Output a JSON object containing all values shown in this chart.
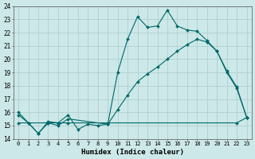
{
  "xlabel": "Humidex (Indice chaleur)",
  "bg_color": "#cce8e8",
  "grid_color": "#b0d0d0",
  "line_color": "#006868",
  "xlim": [
    -0.5,
    23.5
  ],
  "ylim": [
    14,
    24
  ],
  "xticks": [
    0,
    1,
    2,
    3,
    4,
    5,
    6,
    7,
    8,
    9,
    10,
    11,
    12,
    13,
    14,
    15,
    16,
    17,
    18,
    19,
    20,
    21,
    22,
    23
  ],
  "yticks": [
    14,
    15,
    16,
    17,
    18,
    19,
    20,
    21,
    22,
    23,
    24
  ],
  "line1_x": [
    0,
    1,
    2,
    3,
    4,
    5,
    6,
    7,
    8,
    9,
    10,
    11,
    12,
    13,
    14,
    15,
    16,
    17,
    18,
    19,
    20,
    21,
    22,
    23
  ],
  "line1_y": [
    16.0,
    15.2,
    14.4,
    15.3,
    15.2,
    15.8,
    14.7,
    15.1,
    15.0,
    15.1,
    19.0,
    21.5,
    23.2,
    22.4,
    22.5,
    23.7,
    22.5,
    22.2,
    22.1,
    21.4,
    20.6,
    19.0,
    17.8,
    15.6
  ],
  "line2_x": [
    0,
    1,
    2,
    3,
    4,
    5,
    9,
    10,
    11,
    12,
    13,
    14,
    15,
    16,
    17,
    18,
    19,
    20,
    21,
    22,
    23
  ],
  "line2_y": [
    15.8,
    15.2,
    14.4,
    15.2,
    15.0,
    15.5,
    15.1,
    16.2,
    17.3,
    18.3,
    18.9,
    19.4,
    20.0,
    20.6,
    21.1,
    21.5,
    21.3,
    20.6,
    19.1,
    17.9,
    15.6
  ],
  "line3_x": [
    0,
    3,
    4,
    5,
    9,
    22,
    23
  ],
  "line3_y": [
    15.2,
    15.2,
    15.2,
    15.2,
    15.2,
    15.2,
    15.6
  ],
  "markersize": 2.0,
  "linewidth": 0.8
}
